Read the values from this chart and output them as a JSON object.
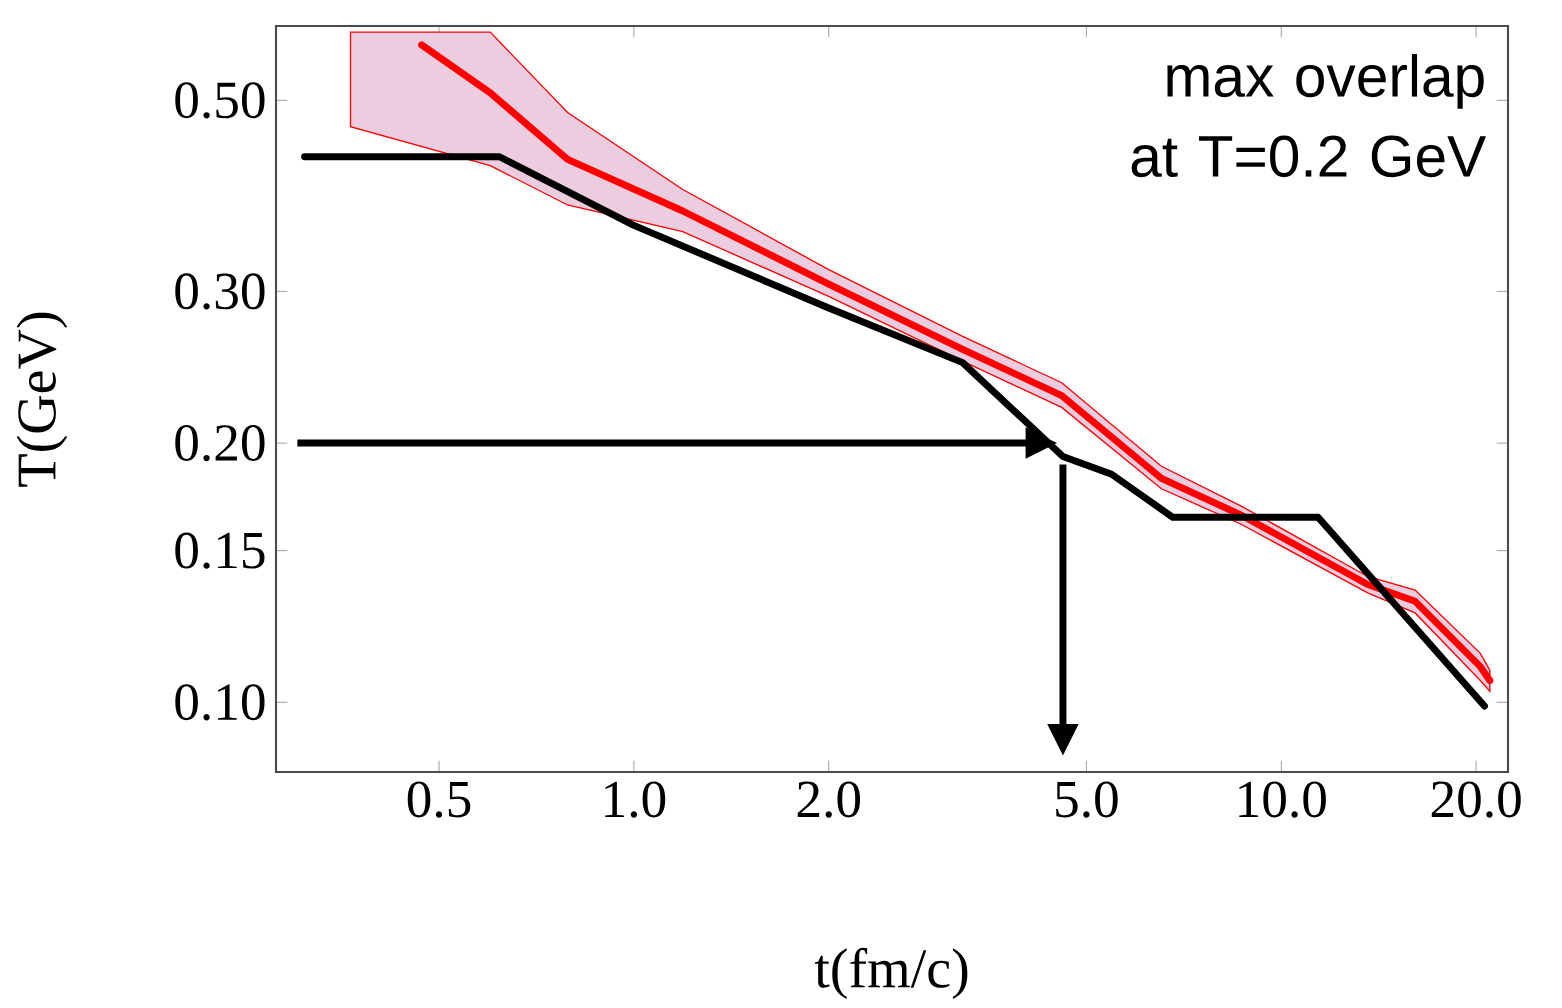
{
  "chart_data": {
    "type": "line",
    "xlabel": "t(fm/c)",
    "ylabel": "T(GeV)",
    "log": "xy",
    "marker": "none",
    "xlim": [
      0.28,
      22.4
    ],
    "ylim": [
      0.083,
      0.61
    ],
    "xticks": [
      0.5,
      {
        "value": 1,
        "label": "1.0"
      },
      {
        "value": 2,
        "label": "2.0"
      },
      {
        "value": 5,
        "label": "5.0"
      },
      {
        "value": 10,
        "label": "10.0"
      },
      {
        "value": 20,
        "label": "20.0"
      }
    ],
    "yticks": [
      {
        "value": 0.1,
        "label": "0.10"
      },
      0.15,
      {
        "value": 0.2,
        "label": "0.20"
      },
      {
        "value": 0.3,
        "label": "0.30"
      },
      {
        "value": 0.5,
        "label": "0.50"
      }
    ],
    "series": [
      {
        "color": "#ff0000",
        "x": [
          0.365,
          0.47,
          0.6,
          0.79,
          1.19,
          2.0,
          3.22,
          4.58,
          6.53,
          8.67,
          13.6,
          16.1,
          20.3,
          21
        ],
        "values": [
          null,
          0.58,
          0.51,
          0.427,
          0.372,
          0.306,
          0.257,
          0.227,
          0.182,
          0.165,
          0.137,
          0.131,
          0.11,
          0.106
        ],
        "upper": [
          0.6,
          null,
          0.6,
          0.484,
          0.394,
          0.318,
          0.266,
          0.235,
          0.188,
          0.169,
          0.14,
          0.135,
          0.114,
          0.109
        ],
        "lower": [
          0.466,
          null,
          0.42,
          0.378,
          0.352,
          0.296,
          0.249,
          0.22,
          0.177,
          0.161,
          0.134,
          0.127,
          0.106,
          0.103
        ]
      },
      {
        "color": "#000000",
        "x": [
          0.31,
          0.62,
          1.0,
          2.0,
          3.22,
          4.6,
          5.47,
          6.8,
          11.4,
          20.6
        ],
        "values": [
          0.43,
          0.43,
          0.358,
          0.287,
          0.248,
          0.193,
          0.184,
          0.164,
          0.164,
          0.099
        ]
      }
    ],
    "ref_lines": [
      {
        "axis": "y",
        "value": 0.2
      },
      {
        "axis": "x",
        "value": 4.6
      }
    ],
    "annotations": [
      "max overlap at T=0.2 GeV"
    ]
  }
}
